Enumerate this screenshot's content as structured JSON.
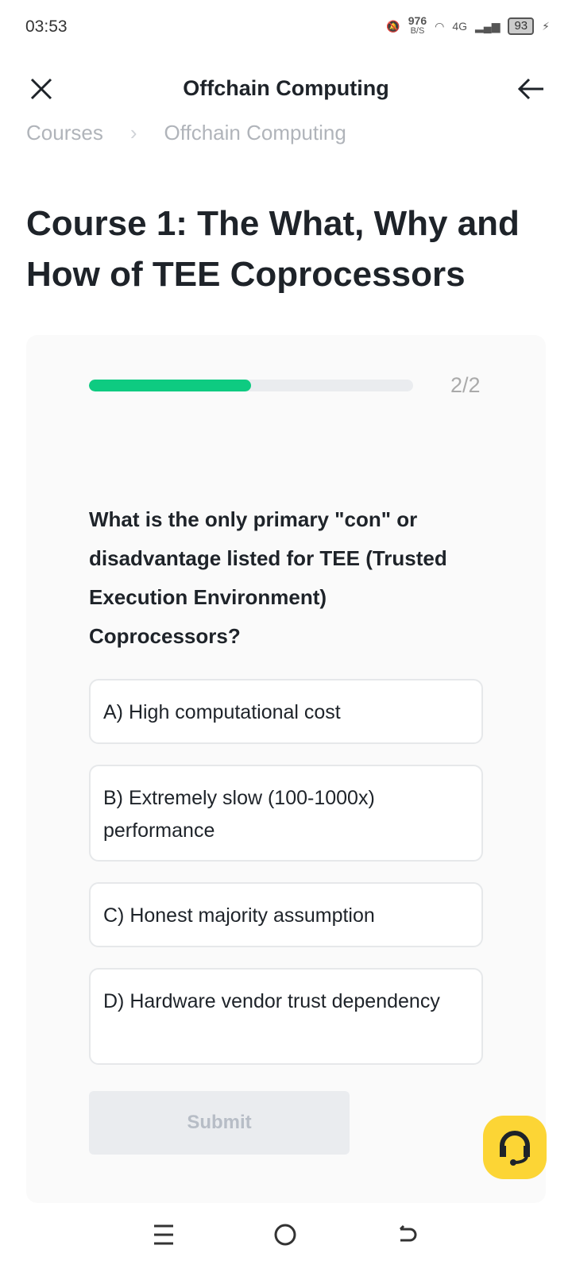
{
  "status_bar": {
    "time": "03:53",
    "net_speed": "976",
    "net_unit": "B/S",
    "network": "4G",
    "battery": "93"
  },
  "header": {
    "title": "Offchain Computing",
    "close_icon": "close-icon",
    "back_icon": "arrow-left-icon"
  },
  "breadcrumb": [
    "Courses",
    "Offchain Computing"
  ],
  "course_title": "Course 1: The What, Why and How of TEE Coprocessors",
  "quiz": {
    "progress": 0.5,
    "progress_color": "#0ecb81",
    "counter": "2/2",
    "question": "What is the only primary \"con\" or disadvantage listed for TEE (Trusted Execution Environment) Coprocessors?",
    "options": [
      "A) High computational cost",
      "B) Extremely slow (100-1000x) performance",
      "C) Honest majority assumption",
      "D) Hardware vendor trust dependency"
    ],
    "submit_label": "Submit"
  },
  "support_icon": "headset-icon"
}
